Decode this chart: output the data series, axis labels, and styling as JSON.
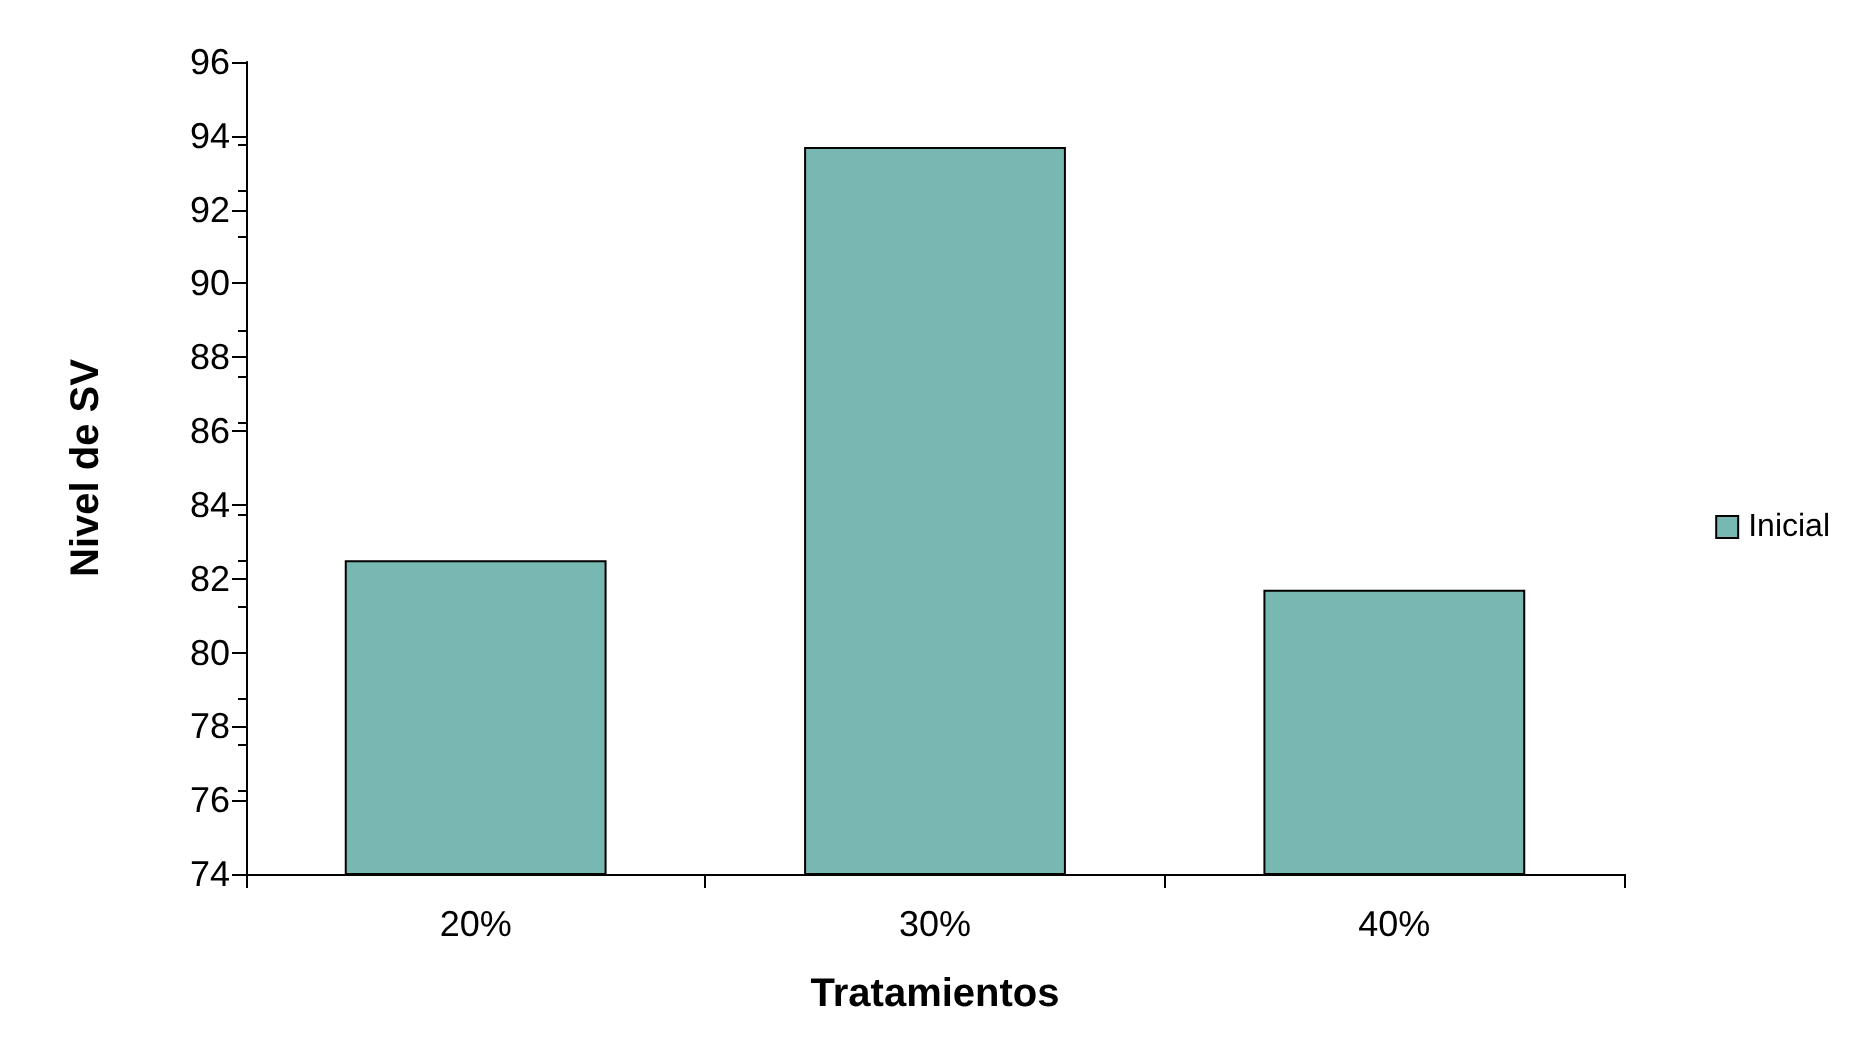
{
  "chart_data": {
    "type": "bar",
    "xlabel": "Tratamientos",
    "ylabel": "Nivel de SV",
    "categories": [
      "20%",
      "30%",
      "40%"
    ],
    "series": [
      {
        "name": "Inicial",
        "color": "#77b8b2",
        "values": [
          82.5,
          93.7,
          81.7
        ]
      }
    ],
    "ylim": [
      74,
      96
    ],
    "yticks": [
      74,
      76,
      78,
      80,
      82,
      84,
      86,
      88,
      90,
      92,
      94,
      96
    ],
    "grid": false,
    "legend": "right"
  }
}
